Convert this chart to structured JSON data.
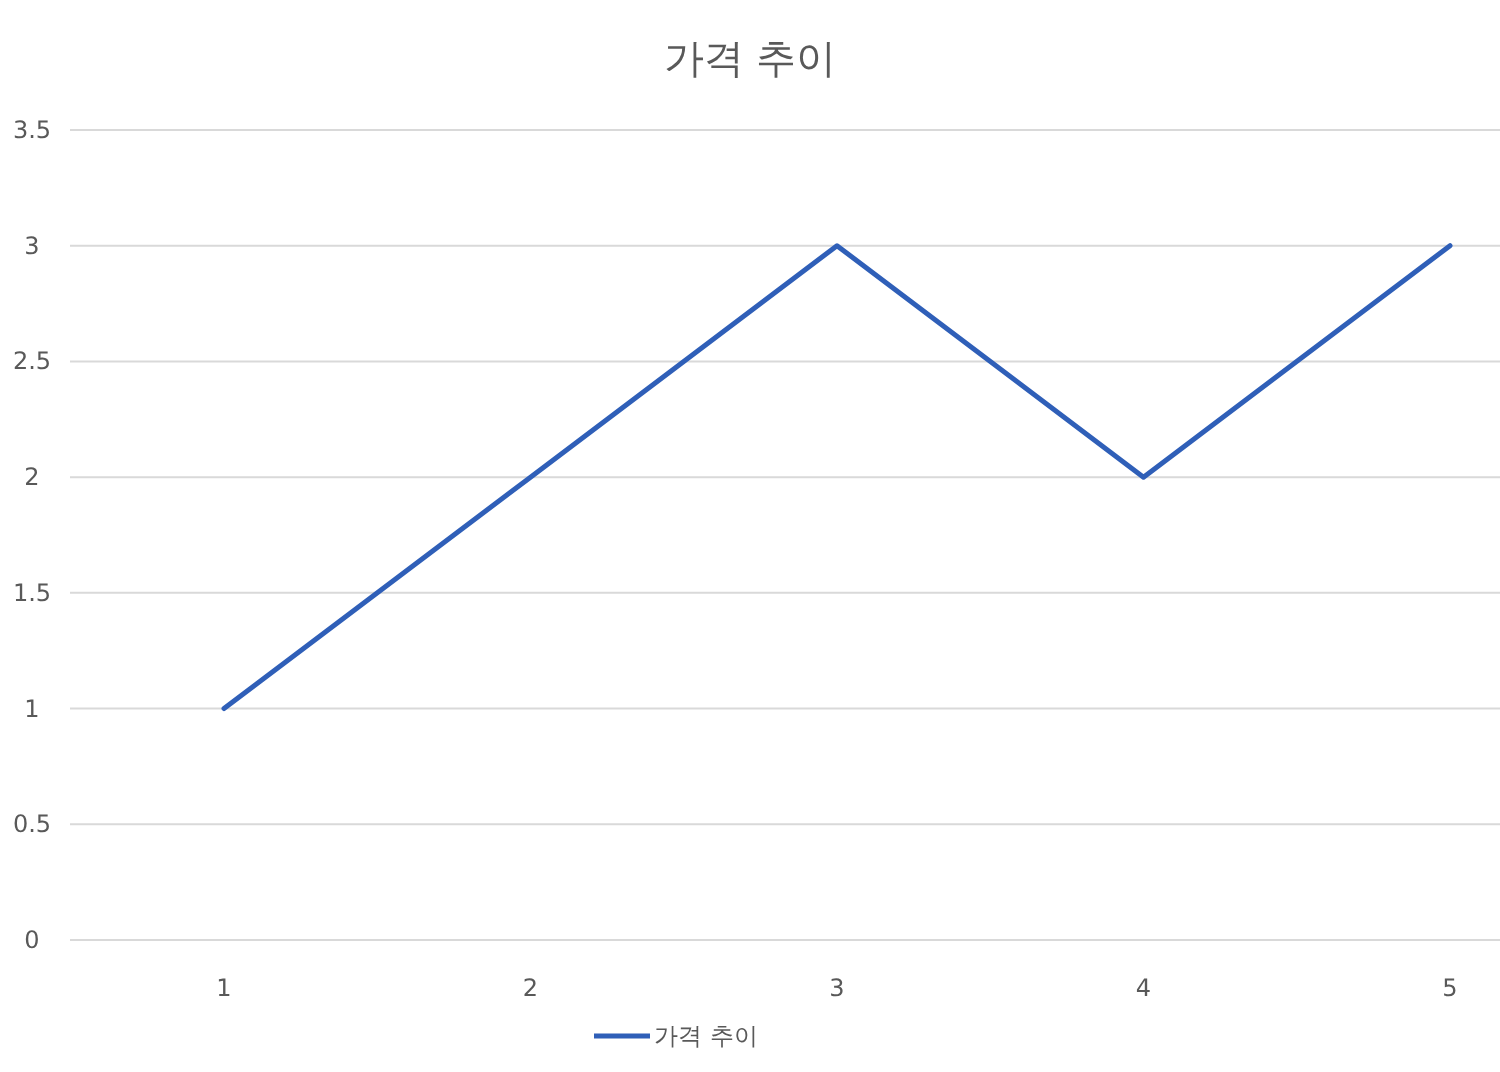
{
  "chart_data": {
    "type": "line",
    "title": "가격 추이",
    "categories": [
      "1",
      "2",
      "3",
      "4",
      "5"
    ],
    "series": [
      {
        "name": "가격 추이",
        "color": "#2f5fb8",
        "values": [
          1,
          2,
          3,
          2,
          3
        ]
      }
    ],
    "ylim": [
      0,
      3.5
    ],
    "yticks": [
      0,
      0.5,
      1,
      1.5,
      2,
      2.5,
      3,
      3.5
    ],
    "grid": "y",
    "legend": "bottom"
  }
}
